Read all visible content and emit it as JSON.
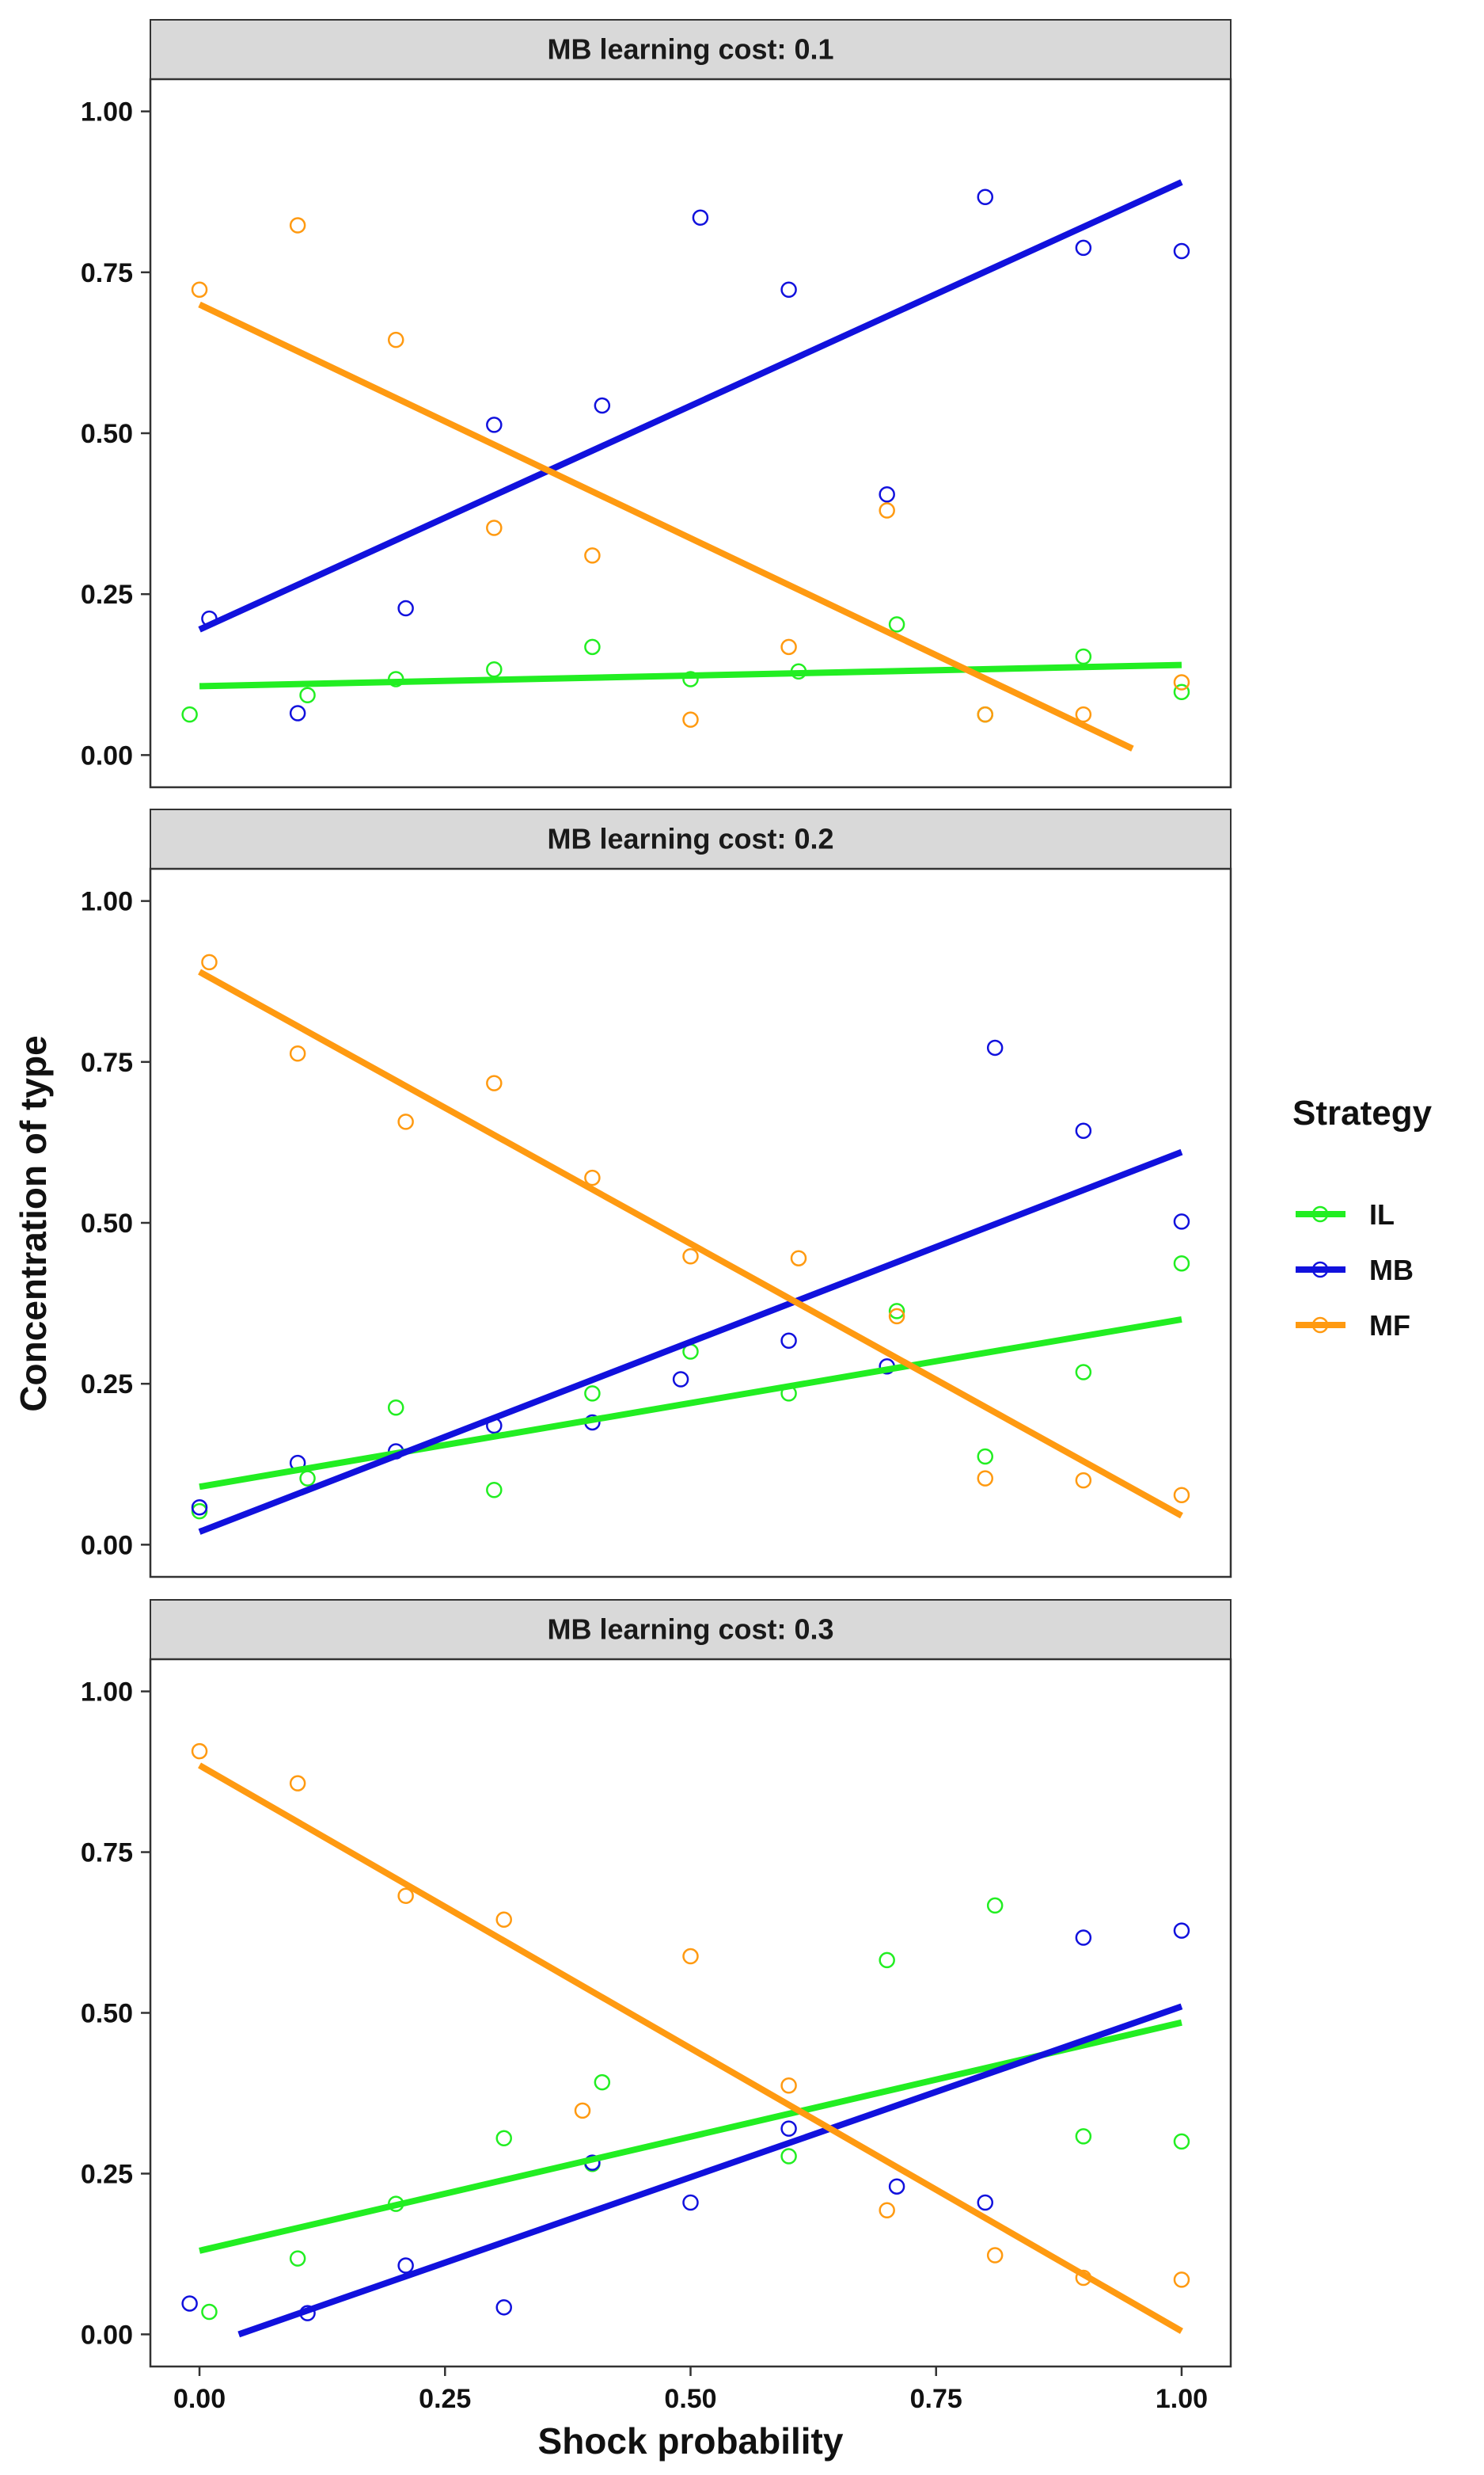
{
  "chart_data": {
    "type": "scatter",
    "x_label": "Shock probability",
    "y_label": "Concentration of type",
    "x_range": [
      -0.05,
      1.05
    ],
    "y_range": [
      -0.05,
      1.05
    ],
    "x_ticks": [
      "0.00",
      "0.25",
      "0.50",
      "0.75",
      "1.00"
    ],
    "y_ticks": [
      "0.00",
      "0.25",
      "0.50",
      "0.75",
      "1.00"
    ],
    "grid": false,
    "legend": {
      "title": "Strategy",
      "position": "right",
      "entries": [
        "IL",
        "MB",
        "MF"
      ]
    },
    "colors": {
      "IL": "#22ee22",
      "MB": "#1111dd",
      "MF": "#ff9a11"
    },
    "panels": [
      {
        "strip": "MB learning cost: 0.1",
        "series": [
          {
            "name": "IL",
            "points": [
              [
                -0.01,
                0.063
              ],
              [
                0.11,
                0.093
              ],
              [
                0.2,
                0.118
              ],
              [
                0.3,
                0.133
              ],
              [
                0.4,
                0.168
              ],
              [
                0.5,
                0.118
              ],
              [
                0.61,
                0.13
              ],
              [
                0.71,
                0.203
              ],
              [
                0.8,
                0.063
              ],
              [
                0.9,
                0.153
              ],
              [
                1.0,
                0.098
              ]
            ],
            "fit": [
              [
                0.0,
                0.107
              ],
              [
                1.0,
                0.14
              ]
            ]
          },
          {
            "name": "MB",
            "points": [
              [
                0.01,
                0.212
              ],
              [
                0.1,
                0.065
              ],
              [
                0.21,
                0.228
              ],
              [
                0.3,
                0.513
              ],
              [
                0.41,
                0.543
              ],
              [
                0.51,
                0.835
              ],
              [
                0.6,
                0.723
              ],
              [
                0.7,
                0.405
              ],
              [
                0.8,
                0.867
              ],
              [
                0.9,
                0.788
              ],
              [
                1.0,
                0.783
              ]
            ],
            "fit": [
              [
                0.0,
                0.195
              ],
              [
                1.0,
                0.89
              ]
            ]
          },
          {
            "name": "MF",
            "points": [
              [
                0.0,
                0.723
              ],
              [
                0.1,
                0.823
              ],
              [
                0.2,
                0.645
              ],
              [
                0.3,
                0.353
              ],
              [
                0.4,
                0.31
              ],
              [
                0.5,
                0.055
              ],
              [
                0.6,
                0.168
              ],
              [
                0.7,
                0.38
              ],
              [
                0.8,
                0.063
              ],
              [
                0.9,
                0.063
              ],
              [
                1.0,
                0.113
              ]
            ],
            "fit": [
              [
                0.0,
                0.7
              ],
              [
                0.95,
                0.01
              ]
            ]
          }
        ]
      },
      {
        "strip": "MB learning cost: 0.2",
        "series": [
          {
            "name": "IL",
            "points": [
              [
                0.0,
                0.052
              ],
              [
                0.11,
                0.103
              ],
              [
                0.2,
                0.213
              ],
              [
                0.3,
                0.085
              ],
              [
                0.4,
                0.235
              ],
              [
                0.5,
                0.3
              ],
              [
                0.6,
                0.235
              ],
              [
                0.71,
                0.363
              ],
              [
                0.8,
                0.137
              ],
              [
                0.9,
                0.268
              ],
              [
                1.0,
                0.437
              ]
            ],
            "fit": [
              [
                0.0,
                0.09
              ],
              [
                1.0,
                0.35
              ]
            ]
          },
          {
            "name": "MB",
            "points": [
              [
                0.0,
                0.058
              ],
              [
                0.1,
                0.127
              ],
              [
                0.2,
                0.145
              ],
              [
                0.3,
                0.185
              ],
              [
                0.4,
                0.19
              ],
              [
                0.49,
                0.257
              ],
              [
                0.6,
                0.317
              ],
              [
                0.7,
                0.277
              ],
              [
                0.81,
                0.772
              ],
              [
                0.9,
                0.643
              ],
              [
                1.0,
                0.502
              ]
            ],
            "fit": [
              [
                0.0,
                0.02
              ],
              [
                1.0,
                0.61
              ]
            ]
          },
          {
            "name": "MF",
            "points": [
              [
                0.01,
                0.905
              ],
              [
                0.1,
                0.763
              ],
              [
                0.21,
                0.657
              ],
              [
                0.3,
                0.717
              ],
              [
                0.4,
                0.57
              ],
              [
                0.5,
                0.448
              ],
              [
                0.61,
                0.445
              ],
              [
                0.71,
                0.355
              ],
              [
                0.8,
                0.103
              ],
              [
                0.9,
                0.1
              ],
              [
                1.0,
                0.077
              ]
            ],
            "fit": [
              [
                0.0,
                0.89
              ],
              [
                1.0,
                0.045
              ]
            ]
          }
        ]
      },
      {
        "strip": "MB learning cost: 0.3",
        "series": [
          {
            "name": "IL",
            "points": [
              [
                0.01,
                0.035
              ],
              [
                0.1,
                0.118
              ],
              [
                0.2,
                0.203
              ],
              [
                0.31,
                0.305
              ],
              [
                0.41,
                0.392
              ],
              [
                0.4,
                0.265
              ],
              [
                0.6,
                0.277
              ],
              [
                0.7,
                0.582
              ],
              [
                0.81,
                0.667
              ],
              [
                0.9,
                0.308
              ],
              [
                1.0,
                0.3
              ]
            ],
            "fit": [
              [
                0.0,
                0.13
              ],
              [
                1.0,
                0.485
              ]
            ]
          },
          {
            "name": "MB",
            "points": [
              [
                -0.01,
                0.048
              ],
              [
                0.11,
                0.033
              ],
              [
                0.21,
                0.107
              ],
              [
                0.31,
                0.042
              ],
              [
                0.4,
                0.267
              ],
              [
                0.5,
                0.205
              ],
              [
                0.6,
                0.32
              ],
              [
                0.71,
                0.23
              ],
              [
                0.8,
                0.205
              ],
              [
                0.9,
                0.617
              ],
              [
                1.0,
                0.628
              ]
            ],
            "fit": [
              [
                0.04,
                0.0
              ],
              [
                1.0,
                0.51
              ]
            ]
          },
          {
            "name": "MF",
            "points": [
              [
                0.0,
                0.907
              ],
              [
                0.1,
                0.857
              ],
              [
                0.21,
                0.682
              ],
              [
                0.31,
                0.645
              ],
              [
                0.39,
                0.348
              ],
              [
                0.5,
                0.588
              ],
              [
                0.6,
                0.387
              ],
              [
                0.7,
                0.193
              ],
              [
                0.81,
                0.123
              ],
              [
                0.9,
                0.088
              ],
              [
                1.0,
                0.085
              ]
            ],
            "fit": [
              [
                0.0,
                0.885
              ],
              [
                1.0,
                0.005
              ]
            ]
          }
        ]
      }
    ]
  }
}
